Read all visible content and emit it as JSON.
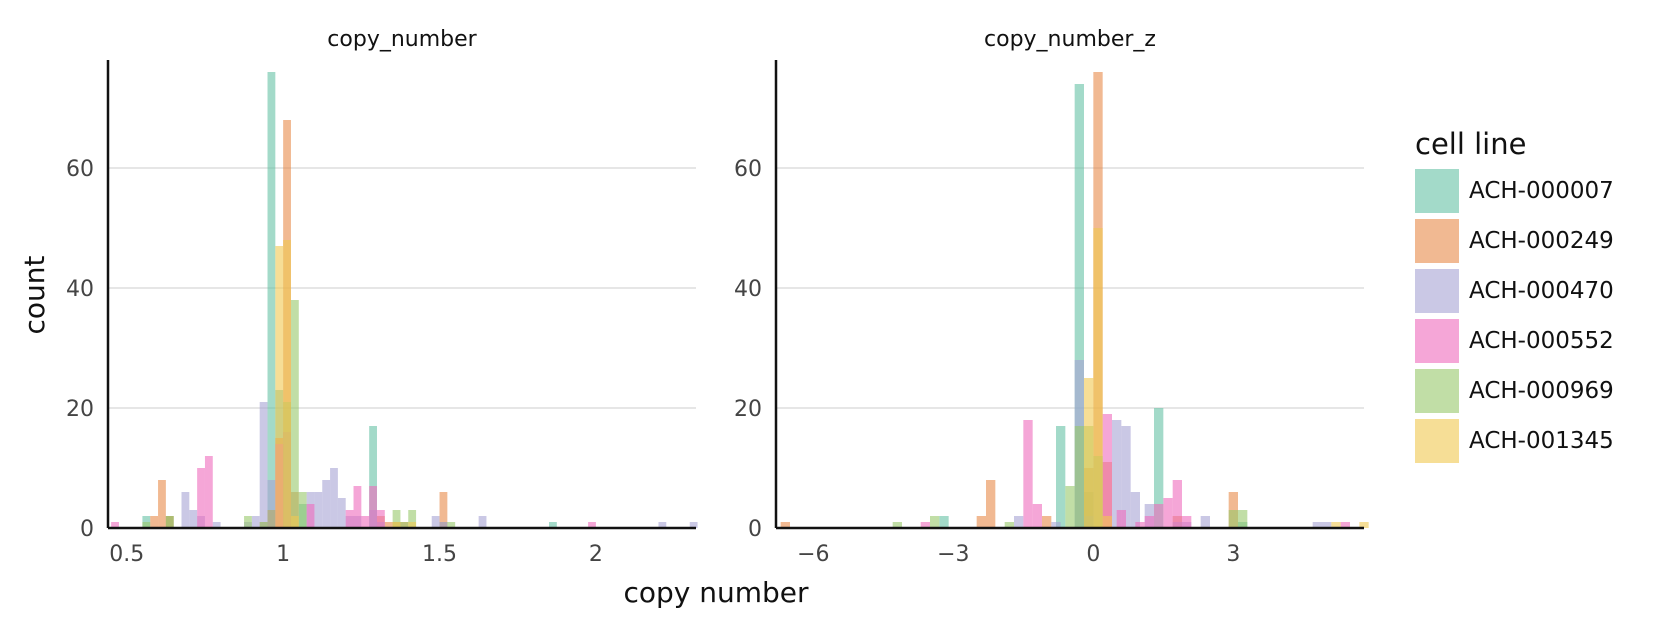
{
  "colors": {
    "ACH-000007": "#66c2a5",
    "ACH-000249": "#e78a4a",
    "ACH-000470": "#a6a3d4",
    "ACH-000552": "#ee6bbd",
    "ACH-000969": "#98c86a",
    "ACH-001345": "#f0c850"
  },
  "legend": {
    "title": "cell line",
    "items": [
      "ACH-000007",
      "ACH-000249",
      "ACH-000470",
      "ACH-000552",
      "ACH-000969",
      "ACH-001345"
    ]
  },
  "figure": {
    "xlabel": "copy number",
    "ylabel": "count"
  },
  "chart_data": [
    {
      "type": "histogram",
      "title": "copy_number",
      "xlabel": "copy number",
      "ylabel": "count",
      "xlim": [
        0.44,
        2.32
      ],
      "ylim": [
        0,
        78
      ],
      "xticks": [
        0.5,
        1,
        1.5,
        2
      ],
      "xtick_labels": [
        "0.5",
        "1",
        "1.5",
        "2"
      ],
      "yticks": [
        0,
        20,
        40,
        60
      ],
      "grid": true,
      "legend_position": "right",
      "bin_width": 0.025,
      "series": [
        {
          "name": "ACH-000007",
          "bins": [
            [
              0.55,
              2
            ],
            [
              0.625,
              2
            ],
            [
              0.95,
              76
            ],
            [
              0.975,
              23
            ],
            [
              1.05,
              4
            ],
            [
              1.275,
              17
            ],
            [
              1.5,
              1
            ],
            [
              1.85,
              1
            ]
          ]
        },
        {
          "name": "ACH-000249",
          "bins": [
            [
              0.575,
              2
            ],
            [
              0.6,
              8
            ],
            [
              0.625,
              2
            ],
            [
              0.925,
              1
            ],
            [
              0.975,
              15
            ],
            [
              1.0,
              68
            ],
            [
              1.025,
              6
            ],
            [
              1.3,
              2
            ],
            [
              1.325,
              1
            ],
            [
              1.35,
              1
            ],
            [
              1.375,
              1
            ],
            [
              1.5,
              6
            ]
          ]
        },
        {
          "name": "ACH-000470",
          "bins": [
            [
              0.675,
              6
            ],
            [
              0.7,
              3
            ],
            [
              0.725,
              2
            ],
            [
              0.775,
              1
            ],
            [
              0.875,
              1
            ],
            [
              0.9,
              2
            ],
            [
              0.925,
              21
            ],
            [
              0.95,
              8
            ],
            [
              1.075,
              6
            ],
            [
              1.1,
              6
            ],
            [
              1.125,
              8
            ],
            [
              1.15,
              10
            ],
            [
              1.175,
              5
            ],
            [
              1.2,
              2
            ],
            [
              1.225,
              2
            ],
            [
              1.275,
              3
            ],
            [
              1.3,
              1
            ],
            [
              1.475,
              2
            ],
            [
              1.5,
              1
            ],
            [
              1.625,
              2
            ],
            [
              2.2,
              1
            ],
            [
              2.3,
              1
            ]
          ]
        },
        {
          "name": "ACH-000552",
          "bins": [
            [
              0.45,
              1
            ],
            [
              0.725,
              10
            ],
            [
              0.75,
              12
            ],
            [
              0.95,
              3
            ],
            [
              0.975,
              14
            ],
            [
              1.0,
              16
            ],
            [
              1.075,
              4
            ],
            [
              1.2,
              3
            ],
            [
              1.225,
              7
            ],
            [
              1.25,
              2
            ],
            [
              1.275,
              7
            ],
            [
              1.3,
              3
            ],
            [
              1.975,
              1
            ]
          ]
        },
        {
          "name": "ACH-000969",
          "bins": [
            [
              0.55,
              1
            ],
            [
              0.625,
              2
            ],
            [
              0.875,
              2
            ],
            [
              0.925,
              1
            ],
            [
              0.95,
              3
            ],
            [
              1.0,
              21
            ],
            [
              1.025,
              38
            ],
            [
              1.05,
              6
            ],
            [
              1.35,
              3
            ],
            [
              1.375,
              1
            ],
            [
              1.4,
              3
            ],
            [
              1.525,
              1
            ]
          ]
        },
        {
          "name": "ACH-001345",
          "bins": [
            [
              0.975,
              47
            ],
            [
              1.0,
              48
            ],
            [
              1.025,
              2
            ],
            [
              1.35,
              1
            ],
            [
              1.4,
              1
            ]
          ]
        }
      ]
    },
    {
      "type": "histogram",
      "title": "copy_number_z",
      "xlabel": "copy number",
      "ylabel": "count",
      "xlim": [
        -6.8,
        5.8
      ],
      "ylim": [
        0,
        78
      ],
      "xticks": [
        -6,
        -3,
        0,
        3
      ],
      "xtick_labels": [
        "−6",
        "−3",
        "0",
        "3"
      ],
      "yticks": [
        0,
        20,
        40,
        60
      ],
      "grid": true,
      "legend_position": "right",
      "bin_width": 0.2,
      "series": [
        {
          "name": "ACH-000007",
          "bins": [
            [
              -3.3,
              2
            ],
            [
              -0.8,
              17
            ],
            [
              -0.4,
              74
            ],
            [
              -0.2,
              6
            ],
            [
              1.3,
              20
            ],
            [
              3.1,
              1
            ]
          ]
        },
        {
          "name": "ACH-000249",
          "bins": [
            [
              -6.7,
              1
            ],
            [
              -2.5,
              2
            ],
            [
              -2.3,
              8
            ],
            [
              -1.1,
              2
            ],
            [
              -0.2,
              10
            ],
            [
              0.0,
              76
            ],
            [
              0.2,
              11
            ],
            [
              1.7,
              2
            ],
            [
              2.9,
              6
            ]
          ]
        },
        {
          "name": "ACH-000470",
          "bins": [
            [
              -1.7,
              2
            ],
            [
              -0.9,
              1
            ],
            [
              -0.4,
              28
            ],
            [
              -0.2,
              2
            ],
            [
              0.4,
              18
            ],
            [
              0.6,
              17
            ],
            [
              0.8,
              6
            ],
            [
              1.1,
              4
            ],
            [
              1.7,
              1
            ],
            [
              1.9,
              1
            ],
            [
              2.3,
              2
            ],
            [
              4.7,
              1
            ],
            [
              4.9,
              1
            ]
          ]
        },
        {
          "name": "ACH-000552",
          "bins": [
            [
              -3.7,
              1
            ],
            [
              -1.5,
              18
            ],
            [
              -1.3,
              4
            ],
            [
              0.2,
              19
            ],
            [
              0.5,
              3
            ],
            [
              0.9,
              1
            ],
            [
              1.1,
              2
            ],
            [
              1.3,
              4
            ],
            [
              1.5,
              5
            ],
            [
              1.7,
              8
            ],
            [
              1.9,
              2
            ],
            [
              5.3,
              1
            ]
          ]
        },
        {
          "name": "ACH-000969",
          "bins": [
            [
              -4.3,
              1
            ],
            [
              -3.5,
              2
            ],
            [
              -1.9,
              1
            ],
            [
              -0.6,
              7
            ],
            [
              -0.4,
              17
            ],
            [
              -0.2,
              17
            ],
            [
              0.0,
              12
            ],
            [
              2.9,
              3
            ],
            [
              3.1,
              3
            ]
          ]
        },
        {
          "name": "ACH-001345",
          "bins": [
            [
              -0.2,
              25
            ],
            [
              0.0,
              50
            ],
            [
              0.2,
              2
            ],
            [
              5.1,
              1
            ],
            [
              5.7,
              1
            ]
          ]
        }
      ]
    }
  ]
}
